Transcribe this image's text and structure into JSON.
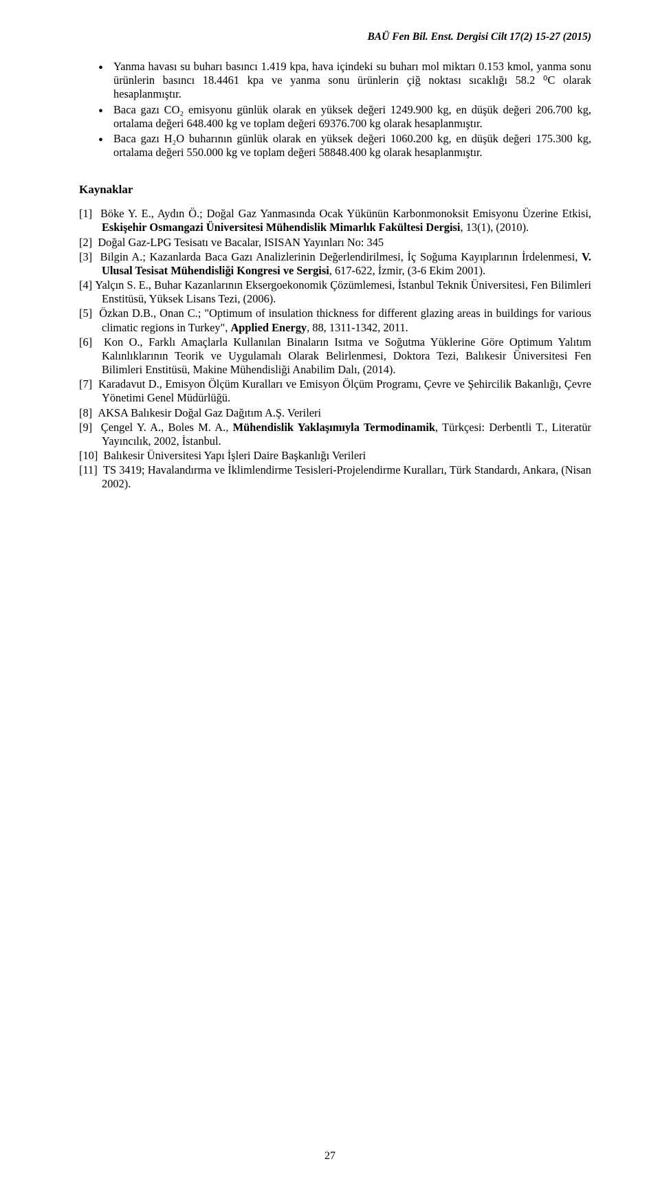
{
  "header": {
    "text": "BAÜ Fen Bil. Enst. Dergisi Cilt 17(2) 15-27 (2015)"
  },
  "bullets": [
    "Yanma havası su buharı basıncı 1.419 kpa, hava içindeki su buharı mol miktarı 0.153 kmol, yanma sonu ürünlerin basıncı 18.4461 kpa ve yanma sonu ürünlerin çiğ noktası sıcaklığı 58.2 ⁰C olarak hesaplanmıştır.",
    "Baca gazı CO₂ emisyonu günlük olarak en yüksek değeri 1249.900 kg, en düşük değeri 206.700 kg, ortalama değeri 648.400 kg ve toplam değeri 69376.700 kg olarak hesaplanmıştır.",
    "Baca gazı H₂O buharının günlük olarak en yüksek değeri 1060.200 kg, en düşük değeri 175.300 kg, ortalama değeri 550.000 kg ve toplam değeri 58848.400 kg olarak hesaplanmıştır."
  ],
  "section_heading": "Kaynaklar",
  "references": [
    {
      "label": "[1]",
      "pre": "Böke Y. E., Aydın Ö.; Doğal Gaz Yanmasında Ocak Yükünün Karbonmonoksit Emisyonu Üzerine Etkisi, ",
      "bold": "Eskişehir Osmangazi Üniversitesi Mühendislik Mimarlık Fakültesi Dergisi",
      "post": ", 13(1), (2010)."
    },
    {
      "label": "[2]",
      "pre": "Doğal Gaz-LPG Tesisatı ve Bacalar, ISISAN Yayınları No: 345",
      "bold": "",
      "post": ""
    },
    {
      "label": "[3]",
      "pre": "Bilgin A.; Kazanlarda Baca Gazı Analizlerinin Değerlendirilmesi, İç Soğuma Kayıplarının İrdelenmesi, ",
      "bold": "V. Ulusal Tesisat Mühendisliği Kongresi ve Sergisi",
      "post": ", 617-622, İzmir, (3-6 Ekim 2001)."
    },
    {
      "label": "[4]",
      "pre": "Yalçın S. E., Buhar Kazanlarının Eksergoekonomik Çözümlemesi, İstanbul Teknik Üniversitesi, Fen Bilimleri Enstitüsü, Yüksek Lisans Tezi, (2006).",
      "bold": "",
      "post": ""
    },
    {
      "label": "[5]",
      "pre": "Özkan D.B., Onan C.; \"Optimum of insulation thickness for different glazing areas in buildings for various climatic regions in Turkey\", ",
      "bold": "Applied Energy",
      "post": ", 88, 1311-1342, 2011."
    },
    {
      "label": "[6]",
      "pre": "Kon O., Farklı Amaçlarla Kullanılan Binaların Isıtma ve Soğutma Yüklerine Göre Optimum Yalıtım Kalınlıklarının Teorik ve Uygulamalı Olarak Belirlenmesi, Doktora Tezi, Balıkesir Üniversitesi Fen Bilimleri Enstitüsü, Makine Mühendisliği Anabilim Dalı, (2014).",
      "bold": "",
      "post": ""
    },
    {
      "label": "[7]",
      "pre": "Karadavut D., Emisyon Ölçüm Kuralları ve Emisyon Ölçüm Programı, Çevre ve Şehircilik Bakanlığı, Çevre Yönetimi Genel Müdürlüğü.",
      "bold": "",
      "post": ""
    },
    {
      "label": "[8]",
      "pre": "AKSA Balıkesir Doğal Gaz Dağıtım A.Ş. Verileri",
      "bold": "",
      "post": ""
    },
    {
      "label": "[9]",
      "pre": "Çengel Y. A., Boles M. A., ",
      "bold": "Mühendislik Yaklaşımıyla Termodinamik",
      "post": ", Türkçesi: Derbentli T., Literatür Yayıncılık, 2002, İstanbul."
    },
    {
      "label": "[10]",
      "pre": "Balıkesir Üniversitesi Yapı İşleri Daire Başkanlığı Verileri",
      "bold": "",
      "post": ""
    },
    {
      "label": "[11]",
      "pre": "TS 3419; Havalandırma ve İklimlendirme Tesisleri-Projelendirme Kuralları, Türk Standardı, Ankara, (Nisan 2002).",
      "bold": "",
      "post": ""
    }
  ],
  "page_number": "27"
}
